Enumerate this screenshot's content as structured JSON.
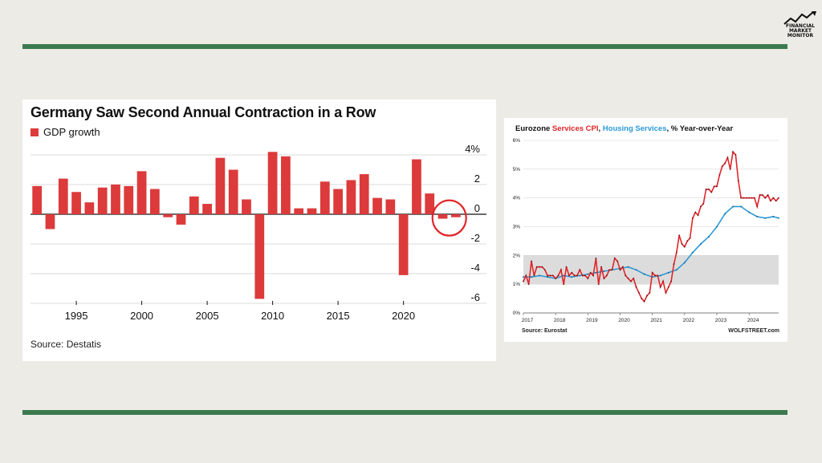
{
  "logo": {
    "text": "FINANCIAL MARKET MONITOR",
    "lines": [
      "FINANCIAL",
      "MARKET",
      "MONITOR"
    ],
    "icon": "rising-chart-logo-icon"
  },
  "colors": {
    "accent_green": "#3b7a4e",
    "bar_red": "#dc3a3b",
    "cpi_red": "#e0262a",
    "housing_blue": "#2b9ad8",
    "band_gray": "#dcdcdc"
  },
  "gdp_chart": {
    "title": "Germany Saw Second Annual Contraction in a Row",
    "legend": "GDP growth",
    "source": "Source: Destatis",
    "highlight": "circle-annotation-2023-2024"
  },
  "cpi_chart": {
    "title_part1": "Eurozone ",
    "title_series1": "Services CPI",
    "title_sep": ", ",
    "title_series2": "Housing Services",
    "title_part2": ", % Year-over-Year",
    "source": "Source: Eurostat",
    "brand": "WOLFSTREET.com"
  },
  "chart_data": [
    {
      "type": "bar",
      "title": "Germany Saw Second Annual Contraction in a Row",
      "series": [
        {
          "name": "GDP growth",
          "color": "#dc3a3b",
          "x": [
            1992,
            1993,
            1994,
            1995,
            1996,
            1997,
            1998,
            1999,
            2000,
            2001,
            2002,
            2003,
            2004,
            2005,
            2006,
            2007,
            2008,
            2009,
            2010,
            2011,
            2012,
            2013,
            2014,
            2015,
            2016,
            2017,
            2018,
            2019,
            2020,
            2021,
            2022,
            2023,
            2024
          ],
          "values": [
            1.9,
            -1.0,
            2.4,
            1.5,
            0.8,
            1.8,
            2.0,
            1.9,
            2.9,
            1.7,
            -0.2,
            -0.7,
            1.2,
            0.7,
            3.8,
            3.0,
            1.0,
            -5.7,
            4.2,
            3.9,
            0.4,
            0.4,
            2.2,
            1.7,
            2.3,
            2.7,
            1.1,
            1.0,
            -4.1,
            3.7,
            1.4,
            -0.3,
            -0.2
          ]
        }
      ],
      "x_ticks": [
        "1995",
        "2000",
        "2005",
        "2010",
        "2015",
        "2020"
      ],
      "y_ticks": [
        "4%",
        "2",
        "0",
        "-2",
        "-4",
        "-6"
      ],
      "ylim": [
        -6,
        4
      ],
      "grid": true,
      "y_axis_position": "right",
      "legend_position": "top-left"
    },
    {
      "type": "line",
      "title": "Eurozone Services CPI, Housing Services, % Year-over-Year",
      "x_ticks": [
        "2017",
        "2018",
        "2019",
        "2020",
        "2021",
        "2022",
        "2023",
        "2024"
      ],
      "y_ticks": [
        "0%",
        "1%",
        "2%",
        "3%",
        "4%",
        "5%",
        "6%"
      ],
      "ylim": [
        0,
        6
      ],
      "xlim": [
        "2017-01",
        "2024-12"
      ],
      "grid": true,
      "shaded_band": [
        1,
        2
      ],
      "series": [
        {
          "name": "Services CPI",
          "color": "#e0262a",
          "x": [
            "2017-01",
            "2017-02",
            "2017-03",
            "2017-04",
            "2017-05",
            "2017-06",
            "2017-07",
            "2017-08",
            "2017-09",
            "2017-10",
            "2017-11",
            "2017-12",
            "2018-01",
            "2018-02",
            "2018-03",
            "2018-04",
            "2018-05",
            "2018-06",
            "2018-07",
            "2018-08",
            "2018-09",
            "2018-10",
            "2018-11",
            "2018-12",
            "2019-01",
            "2019-02",
            "2019-03",
            "2019-04",
            "2019-05",
            "2019-06",
            "2019-07",
            "2019-08",
            "2019-09",
            "2019-10",
            "2019-11",
            "2019-12",
            "2020-01",
            "2020-02",
            "2020-03",
            "2020-04",
            "2020-05",
            "2020-06",
            "2020-07",
            "2020-08",
            "2020-09",
            "2020-10",
            "2020-11",
            "2020-12",
            "2021-01",
            "2021-02",
            "2021-03",
            "2021-04",
            "2021-05",
            "2021-06",
            "2021-07",
            "2021-08",
            "2021-09",
            "2021-10",
            "2021-11",
            "2021-12",
            "2022-01",
            "2022-02",
            "2022-03",
            "2022-04",
            "2022-05",
            "2022-06",
            "2022-07",
            "2022-08",
            "2022-09",
            "2022-10",
            "2022-11",
            "2022-12",
            "2023-01",
            "2023-02",
            "2023-03",
            "2023-04",
            "2023-05",
            "2023-06",
            "2023-07",
            "2023-08",
            "2023-09",
            "2023-10",
            "2023-11",
            "2023-12",
            "2024-01",
            "2024-02",
            "2024-03",
            "2024-04",
            "2024-05",
            "2024-06",
            "2024-07",
            "2024-08",
            "2024-09",
            "2024-10",
            "2024-11",
            "2024-12"
          ],
          "values": [
            1.1,
            1.3,
            1.0,
            1.8,
            1.3,
            1.6,
            1.6,
            1.6,
            1.5,
            1.3,
            1.3,
            1.3,
            1.2,
            1.3,
            1.5,
            1.0,
            1.6,
            1.3,
            1.4,
            1.3,
            1.3,
            1.5,
            1.3,
            1.3,
            1.2,
            1.4,
            1.3,
            1.9,
            1.0,
            1.6,
            1.2,
            1.3,
            1.5,
            1.5,
            1.9,
            1.8,
            1.5,
            1.6,
            1.3,
            1.2,
            1.1,
            1.2,
            0.9,
            0.7,
            0.5,
            0.4,
            0.6,
            0.7,
            1.4,
            1.3,
            1.3,
            0.9,
            1.1,
            0.7,
            0.9,
            1.1,
            1.7,
            2.1,
            2.7,
            2.4,
            2.3,
            2.5,
            2.6,
            3.3,
            3.5,
            3.4,
            3.7,
            3.8,
            4.3,
            4.3,
            4.2,
            4.4,
            4.4,
            4.8,
            5.1,
            5.2,
            5.4,
            5.0,
            5.6,
            5.5,
            4.6,
            4.0,
            4.0,
            4.0,
            4.0,
            4.0,
            4.0,
            3.7,
            4.1,
            4.1,
            4.0,
            4.1,
            3.9,
            4.0,
            3.9,
            4.0
          ]
        },
        {
          "name": "Housing Services",
          "color": "#2b9ad8",
          "x": [
            "2017-01",
            "2017-04",
            "2017-07",
            "2017-10",
            "2018-01",
            "2018-04",
            "2018-07",
            "2018-10",
            "2019-01",
            "2019-04",
            "2019-07",
            "2019-10",
            "2020-01",
            "2020-04",
            "2020-07",
            "2020-10",
            "2021-01",
            "2021-04",
            "2021-07",
            "2021-10",
            "2022-01",
            "2022-04",
            "2022-07",
            "2022-10",
            "2023-01",
            "2023-04",
            "2023-07",
            "2023-10",
            "2024-01",
            "2024-04",
            "2024-07",
            "2024-10",
            "2024-12"
          ],
          "values": [
            1.25,
            1.25,
            1.3,
            1.25,
            1.2,
            1.3,
            1.25,
            1.3,
            1.35,
            1.4,
            1.45,
            1.5,
            1.55,
            1.6,
            1.5,
            1.35,
            1.25,
            1.3,
            1.4,
            1.5,
            1.75,
            2.1,
            2.4,
            2.65,
            3.0,
            3.45,
            3.7,
            3.7,
            3.5,
            3.35,
            3.3,
            3.35,
            3.3
          ]
        }
      ]
    }
  ]
}
